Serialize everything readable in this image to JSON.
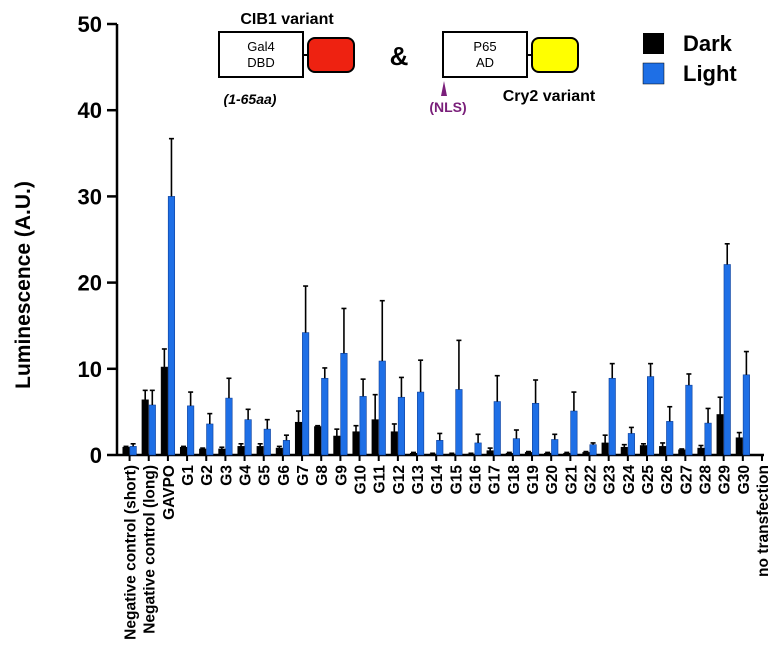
{
  "chart_data": {
    "type": "bar",
    "ylabel": "Luminescence (A.U.)",
    "ylim": [
      0,
      50
    ],
    "yticks": [
      0,
      10,
      20,
      30,
      40,
      50
    ],
    "grid": false,
    "legend_position": "top-right",
    "categories": [
      "Negative control (short)",
      "Negative control (long)",
      "GAVPO",
      "G1",
      "G2",
      "G3",
      "G4",
      "G5",
      "G6",
      "G7",
      "G8",
      "G9",
      "G10",
      "G11",
      "G12",
      "G13",
      "G14",
      "G15",
      "G16",
      "G17",
      "G18",
      "G19",
      "G20",
      "G21",
      "G22",
      "G23",
      "G24",
      "G25",
      "G26",
      "G27",
      "G28",
      "G29",
      "G30",
      "no transfection"
    ],
    "series": [
      {
        "name": "Dark",
        "color": "#000000",
        "values": [
          0.9,
          6.4,
          10.2,
          0.9,
          0.7,
          0.7,
          1.0,
          1.0,
          0.8,
          3.8,
          3.3,
          2.2,
          2.7,
          4.1,
          2.7,
          0.2,
          0.1,
          0.1,
          0.1,
          0.5,
          0.2,
          0.3,
          0.2,
          0.2,
          0.3,
          1.4,
          0.9,
          1.1,
          1.0,
          0.6,
          0.8,
          4.7,
          2.0,
          0.0
        ],
        "errors": [
          0.1,
          1.1,
          2.1,
          0.1,
          0.1,
          0.2,
          0.3,
          0.3,
          0.2,
          1.3,
          0.1,
          0.8,
          0.7,
          2.9,
          0.9,
          0.1,
          0.1,
          0.1,
          0.1,
          0.3,
          0.1,
          0.1,
          0.1,
          0.1,
          0.1,
          0.9,
          0.3,
          0.2,
          0.4,
          0.1,
          0.3,
          2.0,
          0.6,
          0.0
        ]
      },
      {
        "name": "Light",
        "color": "#1e6fe6",
        "values": [
          1.0,
          5.8,
          30.0,
          5.7,
          3.6,
          6.6,
          4.1,
          3.0,
          1.7,
          14.2,
          8.9,
          11.8,
          6.8,
          10.9,
          6.7,
          7.3,
          1.7,
          7.6,
          1.4,
          6.2,
          1.9,
          6.0,
          1.8,
          5.1,
          1.2,
          8.9,
          2.5,
          9.1,
          3.9,
          8.1,
          3.7,
          22.1,
          9.3,
          0.0
        ],
        "errors": [
          0.3,
          1.7,
          6.7,
          1.6,
          1.2,
          2.3,
          1.2,
          1.1,
          0.6,
          5.4,
          1.2,
          5.2,
          2.0,
          7.0,
          2.3,
          3.7,
          0.8,
          5.7,
          1.0,
          3.0,
          1.0,
          2.7,
          0.6,
          2.2,
          0.2,
          1.7,
          0.7,
          1.5,
          1.7,
          1.3,
          1.7,
          2.4,
          2.7,
          0.0
        ]
      }
    ]
  },
  "construct_diagram": {
    "cib1_title": "CIB1 variant",
    "gal4_line1": "Gal4",
    "gal4_line2": "DBD",
    "gal4_range": "(1-65aa)",
    "ampersand": "&",
    "p65_line1": "P65",
    "p65_line2": "AD",
    "nls_label": "(NLS)",
    "cry2_title": "Cry2 variant",
    "cib1_color": "#ee2211",
    "cry2_color": "#ffff00",
    "nls_color": "#7a1f7a"
  }
}
